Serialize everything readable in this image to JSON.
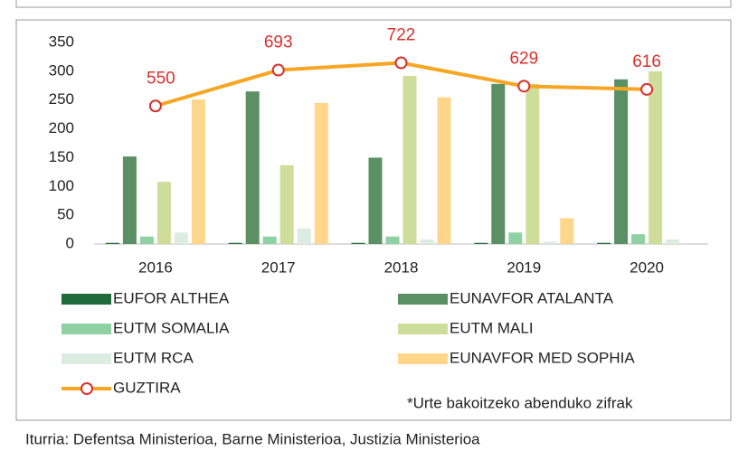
{
  "chart_data": {
    "type": "bar",
    "categories": [
      "2016",
      "2017",
      "2018",
      "2019",
      "2020"
    ],
    "ylim": [
      0,
      350
    ],
    "yticks": [
      0,
      50,
      100,
      150,
      200,
      250,
      300,
      350
    ],
    "y2lim": [
      0,
      803
    ],
    "series": [
      {
        "name": "EUFOR ALTHEA",
        "color": "#1f6b3b",
        "values": [
          2,
          2,
          2,
          2,
          2
        ]
      },
      {
        "name": "EUNAVFOR ATALANTA",
        "color": "#5b8f64",
        "values": [
          152,
          265,
          150,
          278,
          286
        ]
      },
      {
        "name": "EUTM SOMALIA",
        "color": "#8fd1a2",
        "values": [
          13,
          13,
          13,
          20,
          17
        ]
      },
      {
        "name": "EUTM MALI",
        "color": "#cfdd9b",
        "values": [
          108,
          137,
          292,
          278,
          300
        ]
      },
      {
        "name": "EUTM RCA",
        "color": "#dcece1",
        "values": [
          20,
          27,
          8,
          4,
          8
        ]
      },
      {
        "name": "EUNAVFOR MED SOPHIA",
        "color": "#ffd68c",
        "values": [
          251,
          245,
          255,
          45,
          0
        ]
      },
      {
        "name": "GUZTIRA",
        "type": "line",
        "axis": "y2",
        "color": "#f6a623",
        "marker_color": "#d9302c",
        "values": [
          550,
          693,
          722,
          629,
          616
        ]
      }
    ],
    "note": "*Urte bakoitzeko abenduko zifrak",
    "source": "Iturria: Defentsa Ministerioa, Barne Ministerioa, Justizia Ministerioa"
  }
}
